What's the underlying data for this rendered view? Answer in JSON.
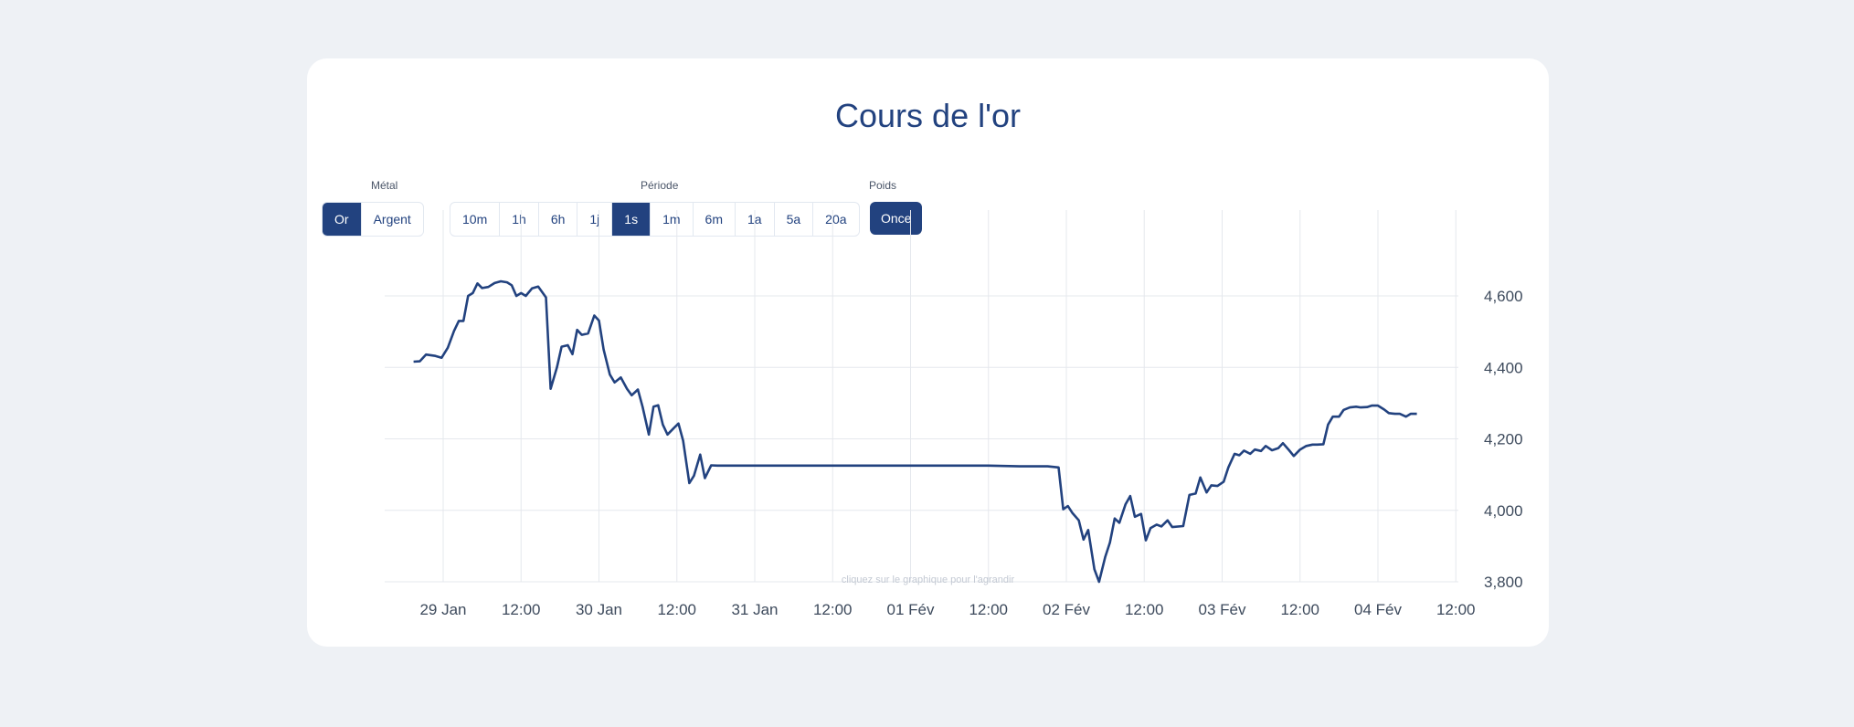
{
  "title": "Cours de l'or",
  "controls": {
    "metal": {
      "label": "Métal",
      "options": [
        "Or",
        "Argent"
      ],
      "selected": "Or"
    },
    "period": {
      "label": "Période",
      "options": [
        "10m",
        "1h",
        "6h",
        "1j",
        "1s",
        "1m",
        "6m",
        "1a",
        "5a",
        "20a"
      ],
      "selected": "1s"
    },
    "weight": {
      "label": "Poids",
      "value": "Once"
    }
  },
  "hint": "cliquez sur le graphique pour l'agrandir",
  "colors": {
    "accent": "#22427f",
    "background": "#eef1f5",
    "grid": "#e5e8ed"
  },
  "chart_data": {
    "type": "line",
    "title": "",
    "xlabel": "",
    "ylabel": "",
    "x_ticks": [
      "29 Jan",
      "12:00",
      "30 Jan",
      "12:00",
      "31 Jan",
      "12:00",
      "01 Fév",
      "12:00",
      "02 Fév",
      "12:00",
      "03 Fév",
      "12:00",
      "04 Fév",
      "12:00"
    ],
    "y_ticks": [
      "4,600",
      "4,400",
      "4,200",
      "4,000",
      "3,800"
    ],
    "ylim": [
      3800,
      4600
    ],
    "xlim_days": [
      -0.19,
      6.51
    ],
    "x_tick_days": [
      0,
      0.5,
      1,
      1.5,
      2,
      2.5,
      3,
      3.5,
      4,
      4.5,
      5,
      5.5,
      6,
      6.5
    ],
    "grid": true,
    "series": [
      {
        "points": [
          [
            -0.19,
            4416
          ],
          [
            -0.15,
            4417
          ],
          [
            -0.11,
            4436
          ],
          [
            -0.05,
            4432
          ],
          [
            -0.01,
            4427
          ],
          [
            0.03,
            4455
          ],
          [
            0.07,
            4502
          ],
          [
            0.1,
            4530
          ],
          [
            0.13,
            4530
          ],
          [
            0.16,
            4600
          ],
          [
            0.19,
            4608
          ],
          [
            0.22,
            4635
          ],
          [
            0.25,
            4622
          ],
          [
            0.29,
            4625
          ],
          [
            0.33,
            4636
          ],
          [
            0.37,
            4641
          ],
          [
            0.41,
            4638
          ],
          [
            0.44,
            4630
          ],
          [
            0.47,
            4600
          ],
          [
            0.5,
            4608
          ],
          [
            0.53,
            4600
          ],
          [
            0.57,
            4621
          ],
          [
            0.61,
            4626
          ],
          [
            0.63,
            4614
          ],
          [
            0.66,
            4596
          ],
          [
            0.69,
            4340
          ],
          [
            0.73,
            4400
          ],
          [
            0.76,
            4458
          ],
          [
            0.8,
            4462
          ],
          [
            0.83,
            4437
          ],
          [
            0.86,
            4505
          ],
          [
            0.89,
            4491
          ],
          [
            0.93,
            4495
          ],
          [
            0.97,
            4545
          ],
          [
            1.0,
            4531
          ],
          [
            1.03,
            4450
          ],
          [
            1.07,
            4380
          ],
          [
            1.1,
            4358
          ],
          [
            1.14,
            4372
          ],
          [
            1.18,
            4340
          ],
          [
            1.21,
            4322
          ],
          [
            1.25,
            4338
          ],
          [
            1.28,
            4290
          ],
          [
            1.32,
            4212
          ],
          [
            1.35,
            4290
          ],
          [
            1.38,
            4294
          ],
          [
            1.41,
            4240
          ],
          [
            1.44,
            4212
          ],
          [
            1.48,
            4230
          ],
          [
            1.51,
            4243
          ],
          [
            1.54,
            4195
          ],
          [
            1.58,
            4076
          ],
          [
            1.61,
            4097
          ],
          [
            1.65,
            4156
          ],
          [
            1.68,
            4090
          ],
          [
            1.72,
            4126
          ],
          [
            1.76,
            4125
          ],
          [
            2.5,
            4125
          ],
          [
            3.0,
            4125
          ],
          [
            3.5,
            4125
          ],
          [
            3.7,
            4123
          ],
          [
            3.88,
            4123
          ],
          [
            3.95,
            4120
          ],
          [
            3.98,
            4003
          ],
          [
            4.01,
            4012
          ],
          [
            4.04,
            3992
          ],
          [
            4.08,
            3972
          ],
          [
            4.11,
            3918
          ],
          [
            4.14,
            3945
          ],
          [
            4.18,
            3835
          ],
          [
            4.21,
            3800
          ],
          [
            4.25,
            3870
          ],
          [
            4.28,
            3910
          ],
          [
            4.31,
            3977
          ],
          [
            4.34,
            3965
          ],
          [
            4.38,
            4017
          ],
          [
            4.41,
            4040
          ],
          [
            4.44,
            3982
          ],
          [
            4.48,
            3990
          ],
          [
            4.51,
            3916
          ],
          [
            4.54,
            3950
          ],
          [
            4.58,
            3960
          ],
          [
            4.61,
            3955
          ],
          [
            4.65,
            3972
          ],
          [
            4.68,
            3953
          ],
          [
            4.75,
            3956
          ],
          [
            4.79,
            4043
          ],
          [
            4.83,
            4047
          ],
          [
            4.86,
            4092
          ],
          [
            4.9,
            4050
          ],
          [
            4.93,
            4070
          ],
          [
            4.97,
            4068
          ],
          [
            5.01,
            4080
          ],
          [
            5.04,
            4120
          ],
          [
            5.08,
            4158
          ],
          [
            5.11,
            4154
          ],
          [
            5.14,
            4167
          ],
          [
            5.18,
            4158
          ],
          [
            5.21,
            4170
          ],
          [
            5.25,
            4166
          ],
          [
            5.28,
            4180
          ],
          [
            5.32,
            4168
          ],
          [
            5.36,
            4174
          ],
          [
            5.39,
            4188
          ],
          [
            5.43,
            4168
          ],
          [
            5.46,
            4152
          ],
          [
            5.5,
            4170
          ],
          [
            5.54,
            4180
          ],
          [
            5.58,
            4184
          ],
          [
            5.61,
            4184
          ],
          [
            5.65,
            4185
          ],
          [
            5.68,
            4240
          ],
          [
            5.71,
            4262
          ],
          [
            5.75,
            4262
          ],
          [
            5.78,
            4281
          ],
          [
            5.82,
            4288
          ],
          [
            5.86,
            4290
          ],
          [
            5.89,
            4288
          ],
          [
            5.93,
            4289
          ],
          [
            5.96,
            4293
          ],
          [
            6.0,
            4293
          ],
          [
            6.04,
            4282
          ],
          [
            6.07,
            4272
          ],
          [
            6.11,
            4270
          ],
          [
            6.14,
            4270
          ],
          [
            6.18,
            4262
          ],
          [
            6.21,
            4270
          ],
          [
            6.25,
            4270
          ]
        ]
      }
    ]
  }
}
